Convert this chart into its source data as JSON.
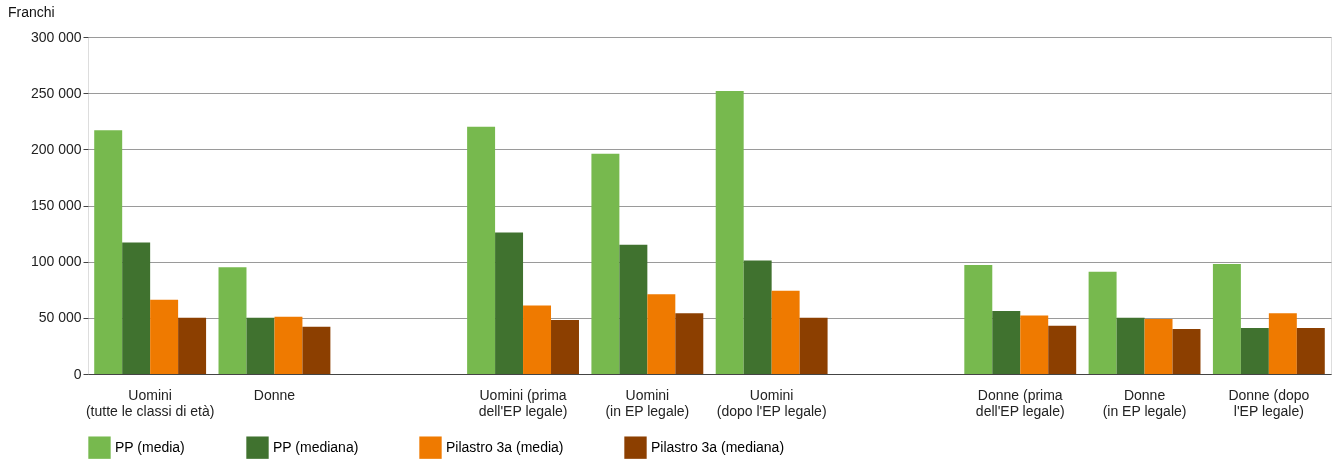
{
  "chart_data": {
    "type": "bar",
    "ylabel": "Franchi",
    "categories": [
      "Uomini\n(tutte le classi di età)",
      "Donne",
      null,
      "Uomini (prima\ndell'EP legale)",
      "Uomini\n(in EP legale)",
      "Uomini\n(dopo l'EP legale)",
      null,
      "Donne (prima\ndell'EP legale)",
      "Donne\n(in EP legale)",
      "Donne (dopo\nl'EP legale)"
    ],
    "series": [
      {
        "name": "PP (media)",
        "color": "#77b94e",
        "values": [
          217000,
          95000,
          null,
          220000,
          196000,
          252000,
          null,
          97000,
          91000,
          98000
        ]
      },
      {
        "name": "PP (mediana)",
        "color": "#40722f",
        "values": [
          117000,
          50000,
          null,
          126000,
          115000,
          101000,
          null,
          56000,
          50000,
          41000
        ]
      },
      {
        "name": "Pilastro 3a (media)",
        "color": "#ef7a00",
        "values": [
          66000,
          51000,
          null,
          61000,
          71000,
          74000,
          null,
          52000,
          49000,
          54000
        ]
      },
      {
        "name": "Pilastro 3a (mediana)",
        "color": "#8c3f00",
        "values": [
          50000,
          42000,
          null,
          48000,
          54000,
          50000,
          null,
          43000,
          40000,
          41000
        ]
      }
    ],
    "ylim": [
      0,
      300000
    ],
    "yticks": [
      0,
      {
        "value": 50000,
        "label": "50 000"
      },
      {
        "value": 100000,
        "label": "100 000"
      },
      {
        "value": 150000,
        "label": "150 000"
      },
      {
        "value": 200000,
        "label": "200 000"
      },
      {
        "value": 250000,
        "label": "250 000"
      },
      {
        "value": 300000,
        "label": "300 000"
      }
    ],
    "grid": "y",
    "legend": "bottom"
  }
}
